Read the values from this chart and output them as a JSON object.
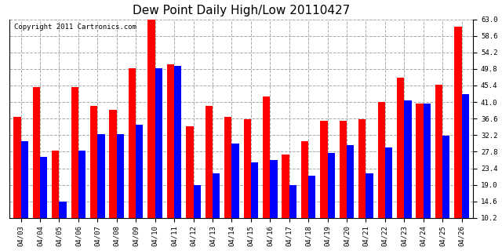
{
  "title": "Dew Point Daily High/Low 20110427",
  "copyright": "Copyright 2011 Cartronics.com",
  "dates": [
    "04/03",
    "04/04",
    "04/05",
    "04/06",
    "04/07",
    "04/08",
    "04/09",
    "04/10",
    "04/11",
    "04/12",
    "04/13",
    "04/14",
    "04/15",
    "04/16",
    "04/17",
    "04/18",
    "04/19",
    "04/20",
    "04/21",
    "04/22",
    "04/23",
    "04/24",
    "04/25",
    "04/26"
  ],
  "highs": [
    37.0,
    45.0,
    28.0,
    45.0,
    40.0,
    39.0,
    50.0,
    63.0,
    51.0,
    34.5,
    40.0,
    37.0,
    36.5,
    42.5,
    27.0,
    30.5,
    36.0,
    36.0,
    36.5,
    41.0,
    47.5,
    40.5,
    45.5,
    61.0
  ],
  "lows": [
    30.5,
    26.5,
    14.5,
    28.0,
    32.5,
    32.5,
    35.0,
    50.0,
    50.5,
    19.0,
    22.0,
    30.0,
    25.0,
    25.5,
    19.0,
    21.5,
    27.5,
    29.5,
    22.0,
    29.0,
    41.5,
    40.5,
    32.0,
    43.0
  ],
  "high_color": "#ff0000",
  "low_color": "#0000ff",
  "bg_color": "#ffffff",
  "plot_bg": "#ffffff",
  "grid_color": "#aaaaaa",
  "ylim_min": 10.2,
  "ylim_max": 63.0,
  "yticks": [
    10.2,
    14.6,
    19.0,
    23.4,
    27.8,
    32.2,
    36.6,
    41.0,
    45.4,
    49.8,
    54.2,
    58.6,
    63.0
  ],
  "bar_width": 0.38,
  "title_fontsize": 11,
  "label_fontsize": 6.5,
  "copyright_fontsize": 6.5
}
